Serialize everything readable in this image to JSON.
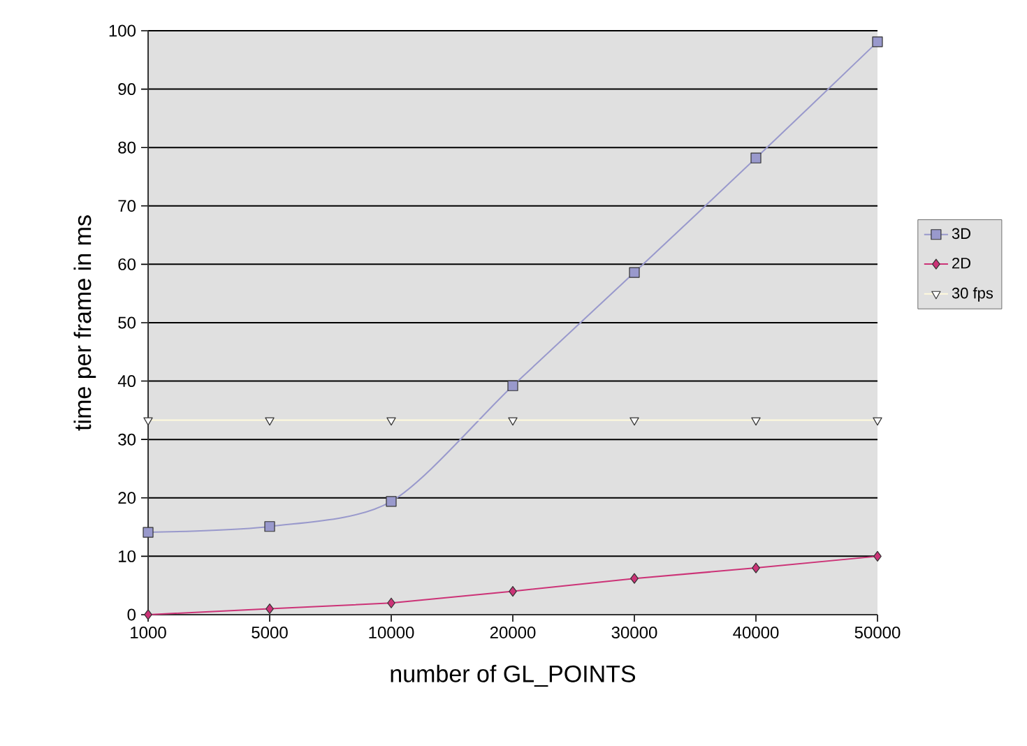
{
  "chart_data": {
    "type": "line",
    "xlabel": "number of GL_POINTS",
    "ylabel": "time per frame in ms",
    "categories": [
      "1000",
      "5000",
      "10000",
      "20000",
      "30000",
      "40000",
      "50000"
    ],
    "series": [
      {
        "name": "3D",
        "color": "#9999cc",
        "marker": "square",
        "values": [
          14.1,
          15.1,
          19.4,
          39.2,
          58.6,
          78.2,
          98.1
        ]
      },
      {
        "name": "2D",
        "color": "#cc3377",
        "marker": "diamond",
        "values": [
          0,
          1,
          2,
          4,
          6.2,
          8,
          10
        ]
      },
      {
        "name": "30 fps",
        "color": "#fffadc",
        "marker": "triangle",
        "values": [
          33.3,
          33.3,
          33.3,
          33.3,
          33.3,
          33.3,
          33.3
        ]
      }
    ],
    "ylim": [
      0,
      100
    ],
    "yticks": [
      0,
      10,
      20,
      30,
      40,
      50,
      60,
      70,
      80,
      90,
      100
    ],
    "grid": "y",
    "legend": "right",
    "line_style": "solid"
  }
}
